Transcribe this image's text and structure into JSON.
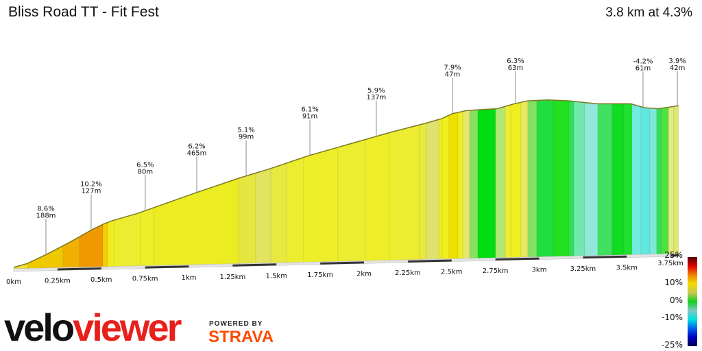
{
  "header": {
    "title": "Bliss Road TT - Fit Fest",
    "summary": "3.8 km at 4.3%"
  },
  "branding": {
    "logo_velo": "velo",
    "logo_viewer": "viewer",
    "powered_by": "POWERED BY",
    "strava": "STRAVA",
    "colors": {
      "viewer": "#e8201c",
      "strava": "#fc4c02"
    }
  },
  "chart_data": {
    "type": "area",
    "title": "",
    "xlabel": "",
    "ylabel": "",
    "xlim": [
      0,
      3.8
    ],
    "x_ticks": [
      "0km",
      "0.25km",
      "0.5km",
      "0.75km",
      "1km",
      "1.25km",
      "1.5km",
      "1.75km",
      "2km",
      "2.25km",
      "2.5km",
      "2.75km",
      "3km",
      "3.25km",
      "3.5km",
      "3.75km"
    ],
    "profile": {
      "distance_km": [
        0,
        0.078,
        0.184,
        0.313,
        0.442,
        0.509,
        0.568,
        0.705,
        1.037,
        1.284,
        1.468,
        1.683,
        1.859,
        2.016,
        2.153,
        2.348,
        2.446,
        2.505,
        2.583,
        2.661,
        2.759,
        2.857,
        2.935,
        3.052,
        3.17,
        3.327,
        3.523,
        3.601,
        3.679,
        3.796
      ],
      "elevation_gain_m": [
        0,
        4,
        13,
        25,
        38,
        44,
        48,
        55,
        76,
        91,
        101,
        114,
        123,
        131,
        138,
        147,
        152,
        157,
        160,
        161,
        162,
        167,
        170,
        171,
        170,
        167,
        167,
        163,
        162,
        165
      ]
    },
    "segments": [
      [
        0,
        0.078,
        "#f0e030"
      ],
      [
        0.078,
        0.282,
        "#f0c800"
      ],
      [
        0.282,
        0.376,
        "#f0b000"
      ],
      [
        0.376,
        0.509,
        "#f09800"
      ],
      [
        0.509,
        0.536,
        "#f0d000"
      ],
      [
        0.536,
        0.575,
        "#f0ec20"
      ],
      [
        0.575,
        0.724,
        "#ecec30"
      ],
      [
        0.724,
        0.802,
        "#eeee28"
      ],
      [
        0.802,
        1.284,
        "#ecec22"
      ],
      [
        1.284,
        1.382,
        "#e6e640"
      ],
      [
        1.382,
        1.468,
        "#e2e460"
      ],
      [
        1.468,
        1.558,
        "#e8e840"
      ],
      [
        1.558,
        1.656,
        "#ecec30"
      ],
      [
        1.656,
        1.851,
        "#eeee28"
      ],
      [
        1.851,
        2.008,
        "#ecec30"
      ],
      [
        2.008,
        2.145,
        "#eeee28"
      ],
      [
        2.145,
        2.317,
        "#ecec30"
      ],
      [
        2.317,
        2.356,
        "#e8e840"
      ],
      [
        2.356,
        2.427,
        "#e0e270"
      ],
      [
        2.427,
        2.446,
        "#eeee28"
      ],
      [
        2.446,
        2.485,
        "#f0f020"
      ],
      [
        2.485,
        2.536,
        "#f0e000"
      ],
      [
        2.536,
        2.564,
        "#f0f020"
      ],
      [
        2.564,
        2.603,
        "#e6e670"
      ],
      [
        2.603,
        2.65,
        "#88e060"
      ],
      [
        2.65,
        2.751,
        "#00dd10"
      ],
      [
        2.751,
        2.806,
        "#b0e878"
      ],
      [
        2.806,
        2.838,
        "#eeee30"
      ],
      [
        2.838,
        2.896,
        "#eeee20"
      ],
      [
        2.896,
        2.935,
        "#e6e860"
      ],
      [
        2.935,
        2.986,
        "#88e060"
      ],
      [
        2.986,
        3.08,
        "#20dd40"
      ],
      [
        3.08,
        3.17,
        "#20e020"
      ],
      [
        3.17,
        3.198,
        "#30e050"
      ],
      [
        3.198,
        3.26,
        "#70e8b0"
      ],
      [
        3.26,
        3.335,
        "#90e8d8"
      ],
      [
        3.335,
        3.417,
        "#40e060"
      ],
      [
        3.417,
        3.483,
        "#10dd20"
      ],
      [
        3.483,
        3.53,
        "#20e030"
      ],
      [
        3.53,
        3.581,
        "#70ece0"
      ],
      [
        3.581,
        3.632,
        "#60e8e0"
      ],
      [
        3.632,
        3.671,
        "#80e8d8"
      ],
      [
        3.671,
        3.699,
        "#30e050"
      ],
      [
        3.699,
        3.738,
        "#50e040"
      ],
      [
        3.738,
        3.769,
        "#e4e880"
      ],
      [
        3.769,
        3.796,
        "#e0e870"
      ]
    ],
    "annotations": [
      {
        "km": 0.184,
        "gradient": "8.6%",
        "length": "188m"
      },
      {
        "km": 0.442,
        "gradient": "10.2%",
        "length": "127m"
      },
      {
        "km": 0.751,
        "gradient": "6.5%",
        "length": "80m"
      },
      {
        "km": 1.045,
        "gradient": "6.2%",
        "length": "465m"
      },
      {
        "km": 1.327,
        "gradient": "5.1%",
        "length": "99m"
      },
      {
        "km": 1.691,
        "gradient": "6.1%",
        "length": "91m"
      },
      {
        "km": 2.07,
        "gradient": "5.9%",
        "length": "137m"
      },
      {
        "km": 2.505,
        "gradient": "7.9%",
        "length": "47m"
      },
      {
        "km": 2.865,
        "gradient": "6.3%",
        "length": "63m"
      },
      {
        "km": 3.593,
        "gradient": "-4.2%",
        "length": "61m"
      },
      {
        "km": 3.789,
        "gradient": "3.9%",
        "length": "42m"
      }
    ],
    "legend": {
      "labels": [
        "25%",
        "10%",
        "0%",
        "-10%",
        "-25%"
      ],
      "colors": [
        "#5a0000",
        "#e00000",
        "#f08000",
        "#f0e000",
        "#c8c850",
        "#10d020",
        "#80c8c0",
        "#00e0e0",
        "#0060f0",
        "#0000c0",
        "#000050"
      ]
    }
  }
}
